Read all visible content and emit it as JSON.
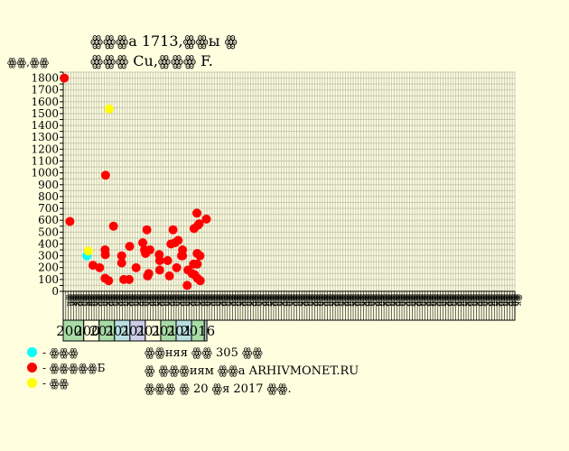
{
  "header": {
    "title_line1": "ꙮꙮꙮа 1713,ꙮꙮы ꙮ",
    "title_line2": "ꙮꙮꙮ Cu,ꙮꙮꙮ F."
  },
  "chart_data": {
    "type": "scatter",
    "title": "ꙮꙮꙮа 1713,ꙮꙮы ꙮ ꙮꙮꙮ Cu,ꙮꙮꙮ F.",
    "ylabel": "ꙮꙮ,ꙮꙮ",
    "ylim": [
      0,
      1850
    ],
    "yticks": [
      0,
      100,
      200,
      300,
      400,
      500,
      600,
      700,
      800,
      900,
      1000,
      1100,
      1200,
      1300,
      1400,
      1500,
      1600,
      1700,
      1800
    ],
    "grid": true,
    "x_month_labels": [
      "ꙮй",
      "ꙮг",
      "ꙮя",
      "ꙮк",
      "ꙮр",
      "ꙮн",
      "ꙮл",
      "ꙮк",
      "ꙮн",
      "ꙮн",
      "ꙮл",
      "ꙮк",
      "ꙮр",
      "ꙮн",
      "ꙮл",
      "ꙮк",
      "ꙮр",
      "ꙮн",
      "ꙮл",
      "ꙮк",
      "ꙮр",
      "ꙮн",
      "ꙮл",
      "ꙮк",
      "ꙮр",
      "ꙮн",
      "ꙮл",
      "ꙮк",
      "ꙮр",
      "ꙮн",
      "ꙮл",
      "ꙮк",
      "ꙮр",
      "ꙮн",
      "ꙮл",
      "ꙮк",
      "ꙮр",
      "ꙮн",
      "ꙮл",
      "ꙮк",
      "ꙮр",
      "ꙮн",
      "ꙮл",
      "ꙮк",
      "ꙮр",
      "ꙮн",
      "ꙮл",
      "ꙮк",
      "ꙮр",
      "ꙮн",
      "ꙮл",
      "ꙮк",
      "ꙮр",
      "ꙮн",
      "ꙮл",
      "ꙮк",
      "ꙮр",
      "ꙮн",
      "ꙮл",
      "ꙮк",
      "ꙮр",
      "ꙮн",
      "ꙮл",
      "ꙮк",
      "ꙮр",
      "ꙮн",
      "ꙮл",
      "ꙮк",
      "ꙮр",
      "ꙮн",
      "ꙮл",
      "ꙮк",
      "ꙮр",
      "ꙮн",
      "ꙮл",
      "ꙮк",
      "ꙮр",
      "ꙮн",
      "ꙮл",
      "ꙮк",
      "ꙮр",
      "ꙮн",
      "ꙮл",
      "ꙮк",
      "ꙮр",
      "ꙮн",
      "ꙮл",
      "ꙮк",
      "ꙮр",
      "ꙮн",
      "ꙮл",
      "ꙮк",
      "ꙮр",
      "ꙮн",
      "ꙮл",
      "ꙮк",
      "ꙮр",
      "ꙮн",
      "ꙮл",
      "ꙮк",
      "ꙮр",
      "ꙮн",
      "ꙮл",
      "ꙮк",
      "ꙮр",
      "ꙮн",
      "ꙮл",
      "ꙮк",
      "ꙮр",
      "ꙮн",
      "ꙮл",
      "ꙮк",
      "ꙮр",
      "ꙮн",
      "ꙮл",
      "ꙮк",
      "ꙮр",
      "ꙮн",
      "ꙮл",
      "ꙮк",
      "ꙮр",
      "ꙮн",
      "ꙮл",
      "ꙮк",
      "ꙮр",
      "ꙮн",
      "ꙮл",
      "ꙮк",
      "ꙮр",
      "ꙮн",
      "ꙮл",
      "ꙮк",
      "ꙮр",
      "ꙮн",
      "ꙮл",
      "ꙮк",
      "ꙮр",
      "ꙮн",
      "ꙮл",
      "ꙮк",
      "ꙮр",
      "ꙮн",
      "ꙮл",
      "ꙮк",
      "ꙮр",
      "ꙮн",
      "ꙮл",
      "ꙮк",
      "ꙮр",
      "ꙮн",
      "ꙮл",
      "ꙮк",
      "ꙮр",
      "ꙮн",
      "ꙮл",
      "ꙮк",
      "ꙮр",
      "ꙮн",
      "ꙮл",
      "ꙮк",
      "ꙮр",
      "ꙮн",
      "ꙮл",
      "ꙮк",
      "ꙮр",
      "ꙮн",
      "ꙮл",
      "ꙮк",
      "ꙮр",
      "ꙮн",
      "ꙮл",
      "ꙮк",
      "ꙮр",
      "ꙮн",
      "ꙮл",
      "ꙮк"
    ],
    "years": [
      {
        "label": "2008",
        "color": "#a9dca6",
        "start": 0,
        "span": 8
      },
      {
        "label": "2009",
        "color": "#ffffe0",
        "start": 8,
        "span": 6
      },
      {
        "label": "2010",
        "color": "#a9dca6",
        "start": 14,
        "span": 6
      },
      {
        "label": "2011",
        "color": "#b9dfe2",
        "start": 20,
        "span": 6
      },
      {
        "label": "2012",
        "color": "#cdcde8",
        "start": 26,
        "span": 6
      },
      {
        "label": "2013",
        "color": "#ffffe0",
        "start": 32,
        "span": 6
      },
      {
        "label": "2014",
        "color": "#a9dca6",
        "start": 38,
        "span": 6
      },
      {
        "label": "2015",
        "color": "#b9dfe2",
        "start": 44,
        "span": 6
      },
      {
        "label": "2016",
        "color": "#a9dca6",
        "start": 50,
        "span": 5
      },
      {
        "label": "",
        "color": "#a9c3c6",
        "start": 55,
        "span": 1
      }
    ],
    "series": [
      {
        "name": "ꙮꙮꙮꙮꙮБ",
        "color": "#ff0000",
        "points": [
          [
            0.4,
            1800
          ],
          [
            2.6,
            590
          ],
          [
            11.6,
            220
          ],
          [
            14.2,
            200
          ],
          [
            16.3,
            350
          ],
          [
            16.4,
            310
          ],
          [
            16.3,
            110
          ],
          [
            16.5,
            980
          ],
          [
            17.7,
            90
          ],
          [
            19.6,
            550
          ],
          [
            22.8,
            300
          ],
          [
            22.8,
            240
          ],
          [
            23.6,
            100
          ],
          [
            25.7,
            100
          ],
          [
            25.9,
            380
          ],
          [
            28.4,
            200
          ],
          [
            31.0,
            410
          ],
          [
            31.7,
            350
          ],
          [
            32.1,
            320
          ],
          [
            32.6,
            520
          ],
          [
            32.9,
            130
          ],
          [
            33.3,
            150
          ],
          [
            33.8,
            350
          ],
          [
            37.4,
            310
          ],
          [
            37.6,
            260
          ],
          [
            37.6,
            180
          ],
          [
            40.7,
            260
          ],
          [
            41.4,
            130
          ],
          [
            42.0,
            400
          ],
          [
            42.8,
            520
          ],
          [
            43.6,
            410
          ],
          [
            44.2,
            200
          ],
          [
            44.8,
            430
          ],
          [
            46.1,
            300
          ],
          [
            46.5,
            300
          ],
          [
            46.5,
            350
          ],
          [
            48.3,
            50
          ],
          [
            48.6,
            180
          ],
          [
            50.2,
            150
          ],
          [
            50.8,
            230
          ],
          [
            51.0,
            530
          ],
          [
            51.2,
            140
          ],
          [
            52.1,
            660
          ],
          [
            52.2,
            320
          ],
          [
            52.2,
            230
          ],
          [
            52.3,
            110
          ],
          [
            52.6,
            560
          ],
          [
            53.0,
            570
          ],
          [
            53.3,
            300
          ],
          [
            53.4,
            90
          ],
          [
            55.8,
            610
          ]
        ]
      },
      {
        "name": "ꙮꙮꙮ",
        "color": "#00ffff",
        "points": [
          [
            9.2,
            300
          ]
        ]
      },
      {
        "name": "ꙮꙮ",
        "color": "#ffff00",
        "points": [
          [
            9.8,
            340
          ],
          [
            17.9,
            1540
          ]
        ]
      }
    ]
  },
  "legend": [
    {
      "color": "#00ffff",
      "label": "- ꙮꙮꙮ"
    },
    {
      "color": "#ff0000",
      "label": "- ꙮꙮꙮꙮꙮБ"
    },
    {
      "color": "#ffff00",
      "label": "- ꙮꙮ"
    }
  ],
  "info": {
    "line1": "ꙮꙮняя ꙮꙮ 305 ꙮꙮ",
    "line2": "ꙮ ꙮꙮꙮиям ꙮꙮа ARHIVMONET.RU",
    "line3": "ꙮꙮꙮ ꙮ 20 ꙮя 2017 ꙮꙮ."
  },
  "watermark": "arhivmonet.ru"
}
